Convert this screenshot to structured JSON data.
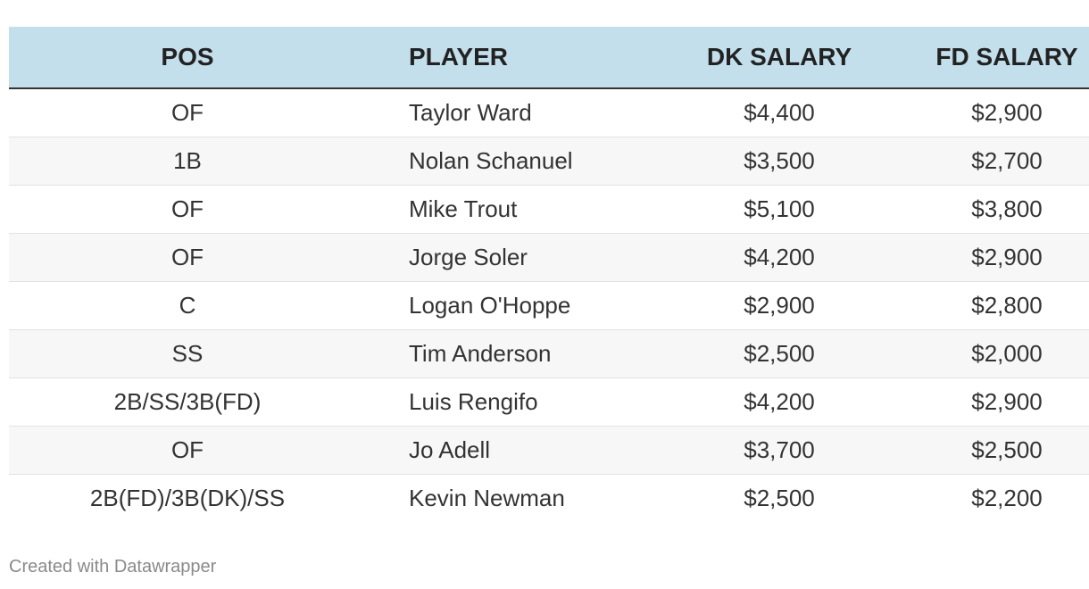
{
  "table": {
    "headers": {
      "pos": "POS",
      "player": "PLAYER",
      "dk_salary": "DK SALARY",
      "fd_salary": "FD SALARY"
    },
    "rows": [
      {
        "pos": "OF",
        "player": "Taylor Ward",
        "dk": "$4,400",
        "fd": "$2,900"
      },
      {
        "pos": "1B",
        "player": "Nolan Schanuel",
        "dk": "$3,500",
        "fd": "$2,700"
      },
      {
        "pos": "OF",
        "player": "Mike Trout",
        "dk": "$5,100",
        "fd": "$3,800"
      },
      {
        "pos": "OF",
        "player": "Jorge Soler",
        "dk": "$4,200",
        "fd": "$2,900"
      },
      {
        "pos": "C",
        "player": "Logan O'Hoppe",
        "dk": "$2,900",
        "fd": "$2,800"
      },
      {
        "pos": "SS",
        "player": "Tim Anderson",
        "dk": "$2,500",
        "fd": "$2,000"
      },
      {
        "pos": "2B/SS/3B(FD)",
        "player": "Luis Rengifo",
        "dk": "$4,200",
        "fd": "$2,900"
      },
      {
        "pos": "OF",
        "player": "Jo Adell",
        "dk": "$3,700",
        "fd": "$2,500"
      },
      {
        "pos": "2B(FD)/3B(DK)/SS",
        "player": "Kevin Newman",
        "dk": "$2,500",
        "fd": "$2,200"
      }
    ]
  },
  "footer": {
    "credit": "Created with Datawrapper"
  },
  "colors": {
    "header_bg": "#c3dfec",
    "alt_row_bg": "#f7f7f7",
    "text": "#333333",
    "footer_text": "#8a8a8a"
  }
}
